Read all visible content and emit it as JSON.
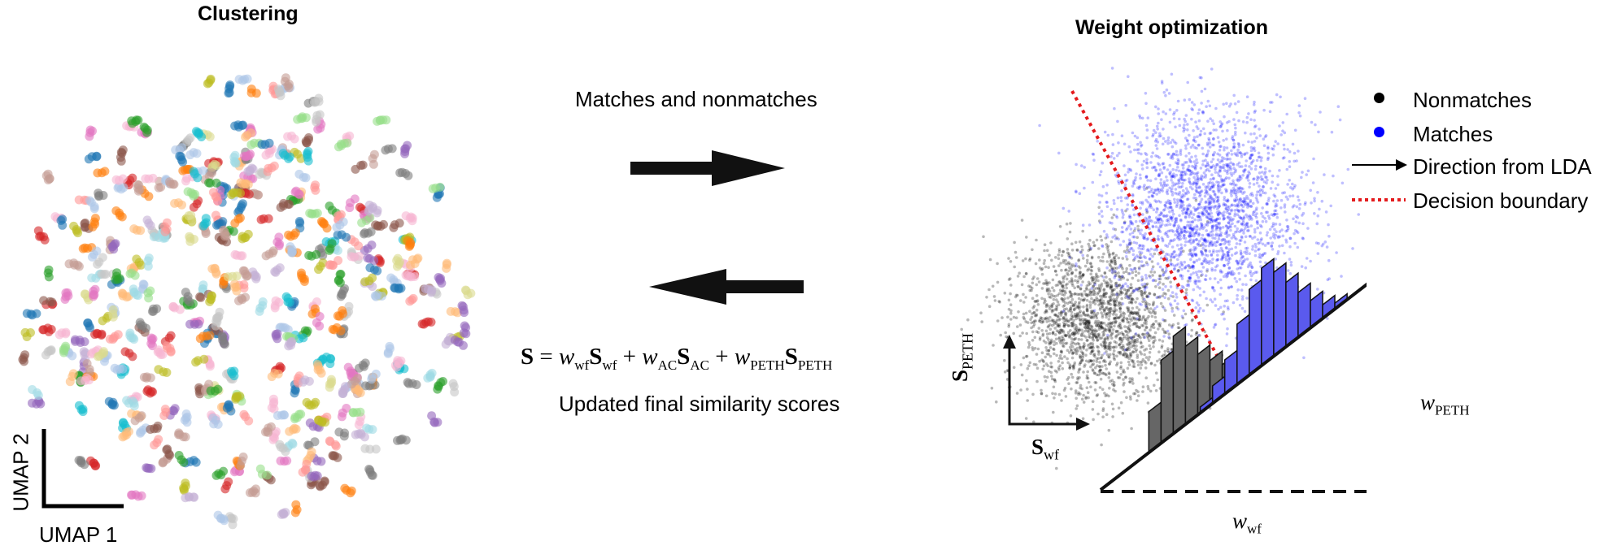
{
  "clustering": {
    "title": "Clustering",
    "xaxis_label": "UMAP 1",
    "yaxis_label": "UMAP 2",
    "palette": [
      "#1f77b4",
      "#ff7f0e",
      "#2ca02c",
      "#d62728",
      "#9467bd",
      "#8c564b",
      "#e377c2",
      "#7f7f7f",
      "#bcbd22",
      "#17becf",
      "#aec7e8",
      "#ffbb78",
      "#98df8a",
      "#ff9896",
      "#c5b0d5",
      "#c49c94",
      "#f7b6d2",
      "#c7c7c7",
      "#dbdb8d",
      "#9edae5"
    ]
  },
  "middle": {
    "top_label": "Matches and nonmatches",
    "bottom_label": "Updated final similarity scores",
    "formula": {
      "S": "S",
      "eq": "=",
      "plus": "+",
      "w": "w",
      "wf": "wf",
      "AC": "AC",
      "PETH": "PETH"
    }
  },
  "weight_opt": {
    "title": "Weight optimization",
    "legend": {
      "nonmatches": "Nonmatches",
      "matches": "Matches",
      "direction": "Direction from LDA",
      "boundary": "Decision boundary"
    },
    "axis": {
      "x_sub": "wf",
      "y_sub": "PETH",
      "S": "S"
    },
    "weights": {
      "w": "w",
      "wf": "wf",
      "peth": "PETH"
    },
    "colors": {
      "nonmatch": "#000000",
      "match": "#0000ff",
      "match_hist": "#5a5aee",
      "nonmatch_hist": "#666666",
      "boundary": "#e41a1c"
    },
    "histograms": {
      "nonmatch_counts": [
        0.42,
        0.85,
        1.0,
        0.8,
        0.62,
        0.46,
        0.32,
        0.2,
        0.1
      ],
      "match_counts": [
        0.06,
        0.18,
        0.35,
        0.62,
        0.88,
        1.0,
        0.86,
        0.66,
        0.46,
        0.28,
        0.14,
        0.06
      ]
    }
  }
}
